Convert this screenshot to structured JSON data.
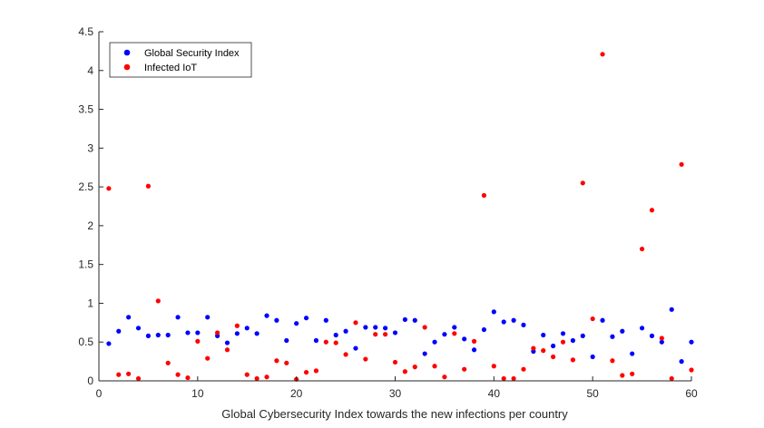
{
  "chart_data": {
    "type": "scatter",
    "title": "",
    "xlabel": "Global Cybersecurity Index towards the new infections per country",
    "ylabel": "",
    "xlim": [
      0,
      60
    ],
    "ylim": [
      0,
      4.5
    ],
    "xticks": [
      "0",
      "10",
      "20",
      "30",
      "40",
      "50",
      "60"
    ],
    "yticks": [
      "0",
      "0.5",
      "1",
      "1.5",
      "2",
      "2.5",
      "3",
      "3.5",
      "4",
      "4.5"
    ],
    "grid": false,
    "legend_position": "top-left",
    "series": [
      {
        "name": "Global Security Index",
        "color": "#0000ff",
        "x": [
          1,
          2,
          3,
          4,
          5,
          6,
          7,
          8,
          9,
          10,
          11,
          12,
          13,
          14,
          15,
          16,
          17,
          18,
          19,
          20,
          21,
          22,
          23,
          24,
          25,
          26,
          27,
          28,
          29,
          30,
          31,
          32,
          33,
          34,
          35,
          36,
          37,
          38,
          39,
          40,
          41,
          42,
          43,
          44,
          45,
          46,
          47,
          48,
          49,
          50,
          51,
          52,
          53,
          54,
          55,
          56,
          57,
          58,
          59,
          60
        ],
        "y": [
          0.48,
          0.64,
          0.82,
          0.68,
          0.58,
          0.59,
          0.59,
          0.82,
          0.62,
          0.62,
          0.82,
          0.58,
          0.49,
          0.61,
          0.68,
          0.61,
          0.84,
          0.78,
          0.52,
          0.74,
          0.81,
          0.52,
          0.78,
          0.59,
          0.64,
          0.42,
          0.69,
          0.69,
          0.68,
          0.62,
          0.79,
          0.78,
          0.35,
          0.5,
          0.6,
          0.69,
          0.54,
          0.4,
          0.66,
          0.89,
          0.76,
          0.78,
          0.72,
          0.38,
          0.59,
          0.45,
          0.61,
          0.52,
          0.58,
          0.31,
          0.78,
          0.57,
          0.64,
          0.35,
          0.68,
          0.58,
          0.5,
          0.92,
          0.25,
          0.5
        ]
      },
      {
        "name": "Infected IoT",
        "color": "#ff0000",
        "x": [
          1,
          2,
          3,
          4,
          5,
          6,
          7,
          8,
          9,
          10,
          11,
          12,
          13,
          14,
          15,
          16,
          17,
          18,
          19,
          20,
          21,
          22,
          23,
          24,
          25,
          26,
          27,
          28,
          29,
          30,
          31,
          32,
          33,
          34,
          35,
          36,
          37,
          38,
          39,
          40,
          41,
          42,
          43,
          44,
          45,
          46,
          47,
          48,
          49,
          50,
          51,
          52,
          53,
          54,
          55,
          56,
          57,
          58,
          59,
          60
        ],
        "y": [
          2.48,
          0.08,
          0.09,
          0.03,
          2.51,
          1.03,
          0.23,
          0.08,
          0.04,
          0.51,
          0.29,
          0.62,
          0.4,
          0.71,
          0.08,
          0.03,
          0.05,
          0.26,
          0.23,
          0.02,
          0.11,
          0.13,
          0.5,
          0.49,
          0.34,
          0.75,
          0.28,
          0.6,
          0.6,
          0.24,
          0.12,
          0.18,
          0.69,
          0.19,
          0.05,
          0.61,
          0.15,
          0.51,
          2.39,
          0.19,
          0.03,
          0.03,
          0.15,
          0.42,
          0.39,
          0.31,
          0.5,
          0.27,
          2.55,
          0.8,
          4.21,
          0.26,
          0.07,
          0.09,
          1.7,
          2.2,
          0.55,
          0.03,
          2.79,
          0.14
        ]
      }
    ]
  }
}
